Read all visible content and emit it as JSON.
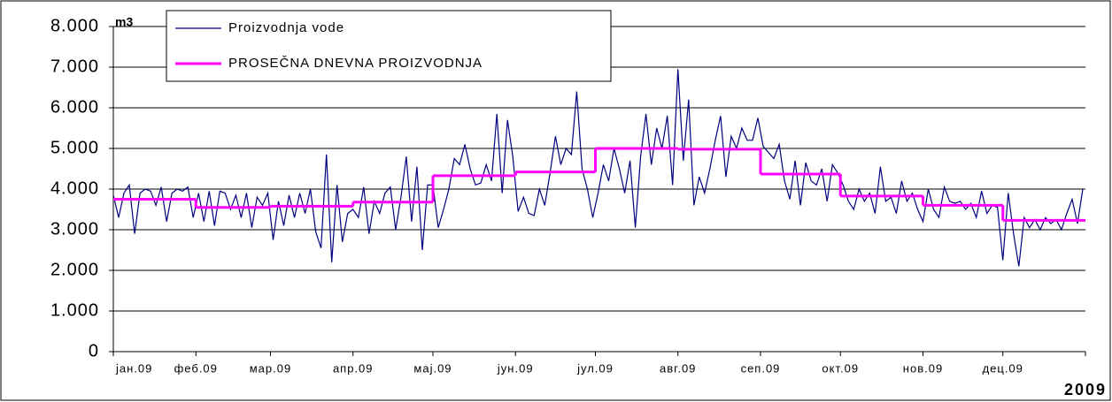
{
  "chart_data": {
    "type": "line",
    "y_label": "m3",
    "x_label": "2009",
    "xlim": [
      0,
      365
    ],
    "xticks": [
      {
        "value": 0,
        "label": "јан.09"
      },
      {
        "value": 31,
        "label": "феб.09"
      },
      {
        "value": 59,
        "label": "мар.09"
      },
      {
        "value": 90,
        "label": "апр.09"
      },
      {
        "value": 120,
        "label": "мај.09"
      },
      {
        "value": 151,
        "label": "јун.09"
      },
      {
        "value": 181,
        "label": "јул.09"
      },
      {
        "value": 212,
        "label": "авг.09"
      },
      {
        "value": 243,
        "label": "сеп.09"
      },
      {
        "value": 273,
        "label": "окт.09"
      },
      {
        "value": 304,
        "label": "нов.09"
      },
      {
        "value": 334,
        "label": "дец.09"
      }
    ],
    "ylim": [
      0,
      8000
    ],
    "yticks": [
      0,
      {
        "value": 1000,
        "label": "1.000"
      },
      {
        "value": 2000,
        "label": "2.000"
      },
      {
        "value": 3000,
        "label": "3.000"
      },
      {
        "value": 4000,
        "label": "4.000"
      },
      {
        "value": 5000,
        "label": "5.000"
      },
      {
        "value": 6000,
        "label": "6.000"
      },
      {
        "value": 7000,
        "label": "7.000"
      },
      {
        "value": 8000,
        "label": "8.000"
      }
    ],
    "grid": true,
    "legend": "top-left",
    "series": [
      {
        "name": "Proizvodnja vode",
        "color": "#000080",
        "x": [
          0,
          2,
          4,
          6,
          8,
          10,
          12,
          14,
          16,
          18,
          20,
          22,
          24,
          26,
          28,
          30,
          32,
          34,
          36,
          38,
          40,
          42,
          44,
          46,
          48,
          50,
          52,
          54,
          56,
          58,
          60,
          62,
          64,
          66,
          68,
          70,
          72,
          74,
          76,
          78,
          80,
          82,
          84,
          86,
          88,
          90,
          92,
          94,
          96,
          98,
          100,
          102,
          104,
          106,
          108,
          110,
          112,
          114,
          116,
          118,
          120,
          122,
          124,
          126,
          128,
          130,
          132,
          134,
          136,
          138,
          140,
          142,
          144,
          146,
          148,
          150,
          152,
          154,
          156,
          158,
          160,
          162,
          164,
          166,
          168,
          170,
          172,
          174,
          176,
          178,
          180,
          182,
          184,
          186,
          188,
          190,
          192,
          194,
          196,
          198,
          200,
          202,
          204,
          206,
          208,
          210,
          212,
          214,
          216,
          218,
          220,
          222,
          224,
          226,
          228,
          230,
          232,
          234,
          236,
          238,
          240,
          242,
          244,
          246,
          248,
          250,
          252,
          254,
          256,
          258,
          260,
          262,
          264,
          266,
          268,
          270,
          272,
          274,
          276,
          278,
          280,
          282,
          284,
          286,
          288,
          290,
          292,
          294,
          296,
          298,
          300,
          302,
          304,
          306,
          308,
          310,
          312,
          314,
          316,
          318,
          320,
          322,
          324,
          326,
          328,
          330,
          332,
          334,
          336,
          338,
          340,
          342,
          344,
          346,
          348,
          350,
          352,
          354,
          356,
          358,
          360,
          362,
          364
        ],
        "values": [
          3850,
          3300,
          3900,
          4100,
          2900,
          3900,
          4000,
          3950,
          3600,
          4050,
          3200,
          3900,
          4000,
          3950,
          4050,
          3300,
          3900,
          3200,
          3950,
          3100,
          3950,
          3900,
          3500,
          3850,
          3300,
          3900,
          3050,
          3800,
          3600,
          3900,
          2750,
          3700,
          3100,
          3850,
          3300,
          3900,
          3400,
          4000,
          2950,
          2550,
          4850,
          2200,
          4100,
          2700,
          3400,
          3500,
          3300,
          4050,
          2900,
          3700,
          3400,
          3900,
          4050,
          3000,
          3800,
          4800,
          3200,
          4550,
          2500,
          4100,
          4100,
          3050,
          3500,
          4000,
          4750,
          4600,
          5100,
          4500,
          4100,
          4150,
          4600,
          4200,
          5850,
          3900,
          5700,
          4800,
          3450,
          3800,
          3400,
          3350,
          4000,
          3600,
          4400,
          5300,
          4600,
          5000,
          4850,
          6400,
          4500,
          4000,
          3300,
          3900,
          4600,
          4200,
          5000,
          4500,
          3900,
          4700,
          3050,
          4800,
          5850,
          4600,
          5500,
          5000,
          5800,
          4100,
          6950,
          4700,
          6200,
          3600,
          4300,
          3900,
          4500,
          5200,
          5800,
          4300,
          5300,
          5000,
          5500,
          5200,
          5200,
          5750,
          5050,
          4900,
          4750,
          5100,
          4200,
          3750,
          4700,
          3600,
          4650,
          4200,
          4100,
          4500,
          3700,
          4600,
          4400,
          4100,
          3700,
          3500,
          4000,
          3700,
          3900,
          3400,
          4550,
          3700,
          3800,
          3400,
          4200,
          3700,
          3900,
          3500,
          3200,
          4000,
          3500,
          3300,
          4050,
          3700,
          3650,
          3700,
          3500,
          3650,
          3300,
          3950,
          3400,
          3600,
          3550,
          2250,
          3900,
          2900,
          2100,
          3300,
          3050,
          3250,
          3000,
          3300,
          3150,
          3250,
          3000,
          3400,
          3750,
          3150,
          4000
        ]
      },
      {
        "name": "PROSEČNA DNEVNA PROIZVODNJA",
        "color": "#ff00ff",
        "step": true,
        "x": [
          0,
          31,
          59,
          90,
          120,
          151,
          181,
          212,
          243,
          273,
          304,
          334
        ],
        "values": [
          3750,
          3550,
          3580,
          3680,
          4330,
          4420,
          5000,
          4980,
          4370,
          3830,
          3600,
          3230
        ]
      }
    ]
  }
}
